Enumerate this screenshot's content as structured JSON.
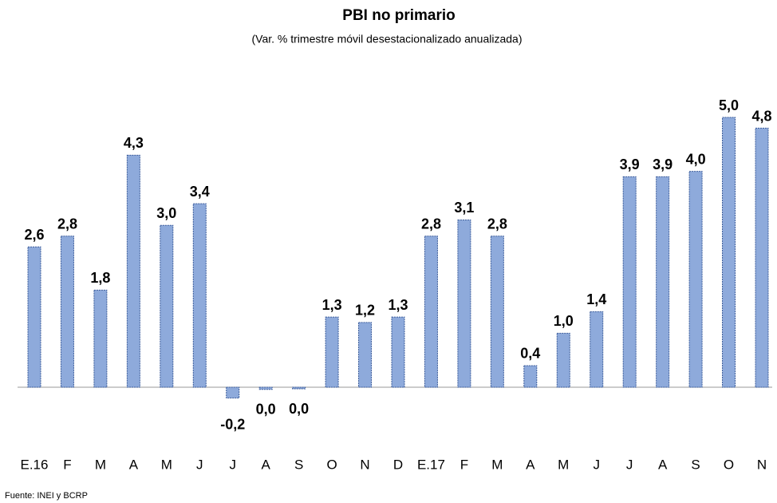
{
  "chart_data": {
    "type": "bar",
    "title": "PBI no primario",
    "subtitle": "(Var. % trimestre móvil desestacionalizado anualizada)",
    "source": "Fuente: INEI y BCRP",
    "categories": [
      "E.16",
      "F",
      "M",
      "A",
      "M",
      "J",
      "J",
      "A",
      "S",
      "O",
      "N",
      "D",
      "E.17",
      "F",
      "M",
      "A",
      "M",
      "J",
      "J",
      "A",
      "S",
      "O",
      "N"
    ],
    "values": [
      2.6,
      2.8,
      1.8,
      4.3,
      3.0,
      3.4,
      -0.2,
      -0.04,
      -0.03,
      1.3,
      1.2,
      1.3,
      2.8,
      3.1,
      2.8,
      0.4,
      1.0,
      1.4,
      3.9,
      3.9,
      4.0,
      5.0,
      4.8
    ],
    "value_labels": [
      "2,6",
      "2,8",
      "1,8",
      "4,3",
      "3,0",
      "3,4",
      "-0,2",
      "0,0",
      "0,0",
      "1,3",
      "1,2",
      "1,3",
      "2,8",
      "3,1",
      "2,8",
      "0,4",
      "1,0",
      "1,4",
      "3,9",
      "3,9",
      "4,0",
      "5,0",
      "4,8"
    ],
    "color": "#8eaadb"
  }
}
